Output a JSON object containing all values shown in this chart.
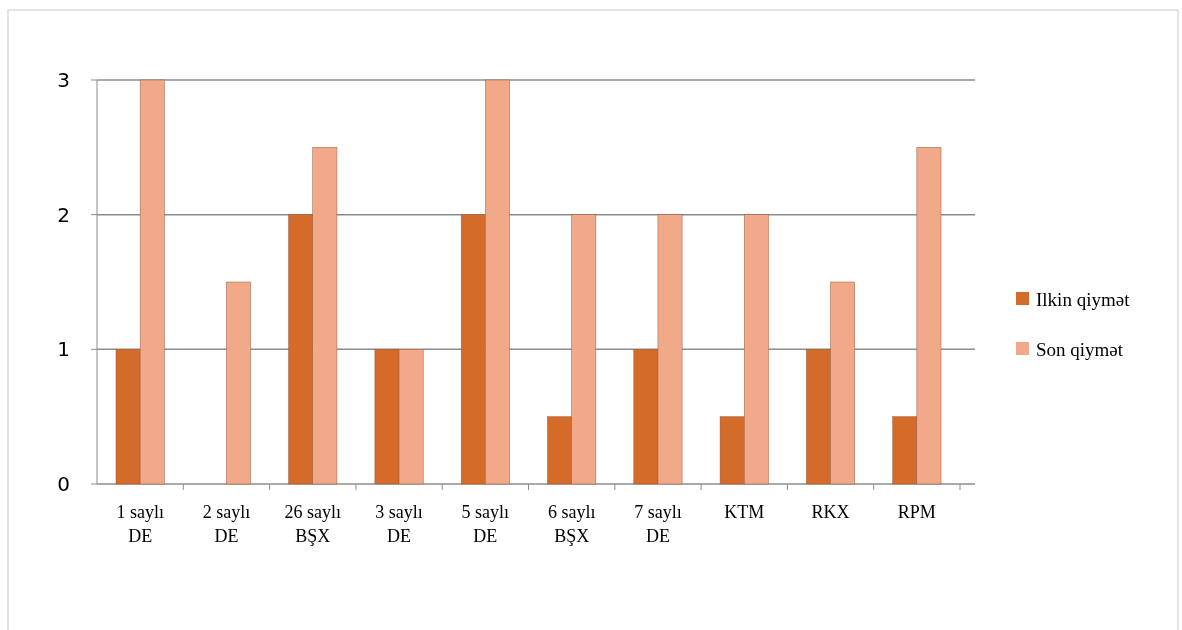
{
  "chart_data": {
    "type": "bar",
    "categories": [
      "1 saylı DE",
      "2 saylı DE",
      "26 saylı BŞX",
      "3 saylı DE",
      "5 saylı DE",
      "6 saylı BŞX",
      "7 saylı DE",
      "KTM",
      "RKX",
      "RPM"
    ],
    "series": [
      {
        "name": "Ilkin qiymət",
        "color": "#d46b29",
        "values": [
          1,
          0,
          2,
          1,
          2,
          0.5,
          1,
          0.5,
          1,
          0.5
        ]
      },
      {
        "name": "Son qiymət",
        "color": "#f2a98a",
        "values": [
          3,
          1.5,
          2.5,
          1,
          3,
          2,
          2,
          2,
          1.5,
          2.5
        ]
      }
    ],
    "ylim": [
      0,
      3
    ],
    "yticks": [
      0,
      1,
      2,
      3
    ],
    "grid": "y",
    "legend": "right"
  }
}
